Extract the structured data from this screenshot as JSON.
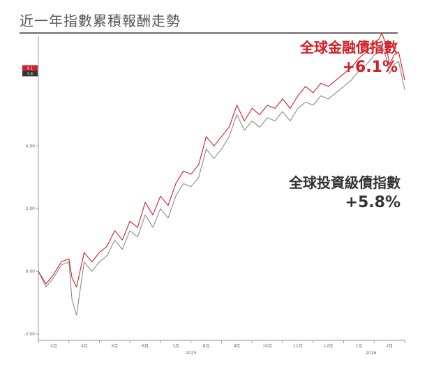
{
  "chart_data": {
    "type": "line",
    "title": "近一年指數累積報酬走勢",
    "xlabel": "",
    "ylabel": "",
    "ylim": [
      -2.2,
      7.5
    ],
    "yticks": [
      -2,
      0,
      2,
      4
    ],
    "ytick_labels": [
      "-2.00",
      "0.00",
      "2.00",
      "4.00"
    ],
    "xtick_labels": [
      "3月",
      "4月",
      "5月",
      "6月",
      "7月",
      "8月",
      "9月",
      "10月",
      "11月",
      "12月",
      "1月",
      "2月"
    ],
    "year_labels": [
      {
        "text": "2025",
        "at_month": 5
      },
      {
        "text": "2026",
        "at_month": 10.9
      }
    ],
    "x_range": [
      0,
      12
    ],
    "grid": false,
    "value_tags": [
      "6.1",
      "5.8"
    ],
    "series": [
      {
        "name": "全球金融債指數",
        "color": "#d21f26",
        "x": [
          0,
          0.25,
          0.5,
          0.75,
          1.0,
          1.1,
          1.25,
          1.5,
          1.75,
          2.0,
          2.25,
          2.5,
          2.75,
          3.0,
          3.25,
          3.5,
          3.75,
          4.0,
          4.25,
          4.5,
          4.75,
          5.0,
          5.25,
          5.5,
          5.75,
          6.0,
          6.25,
          6.5,
          6.75,
          7.0,
          7.25,
          7.5,
          7.75,
          8.0,
          8.25,
          8.5,
          8.75,
          9.0,
          9.25,
          9.5,
          9.75,
          10.0,
          10.25,
          10.5,
          10.75,
          11.0,
          11.15,
          11.25,
          11.4,
          11.5,
          11.65,
          11.8,
          12.0
        ],
        "values": [
          0.0,
          -0.4,
          -0.1,
          0.3,
          0.4,
          -0.2,
          -0.5,
          0.6,
          0.3,
          0.6,
          0.8,
          1.3,
          1.0,
          1.6,
          1.4,
          2.2,
          1.8,
          2.4,
          2.1,
          2.8,
          3.2,
          3.1,
          3.4,
          4.3,
          4.0,
          4.3,
          4.6,
          5.3,
          4.8,
          5.2,
          5.0,
          5.3,
          5.2,
          5.5,
          5.2,
          5.6,
          5.9,
          5.7,
          6.0,
          5.9,
          6.1,
          6.3,
          6.5,
          6.8,
          7.0,
          7.3,
          7.4,
          7.6,
          7.2,
          6.6,
          6.9,
          7.0,
          6.1
        ]
      },
      {
        "name": "全球投資級債指數",
        "color": "#8c8c8c",
        "x": [
          0,
          0.25,
          0.5,
          0.75,
          1.0,
          1.1,
          1.25,
          1.5,
          1.75,
          2.0,
          2.25,
          2.5,
          2.75,
          3.0,
          3.25,
          3.5,
          3.75,
          4.0,
          4.25,
          4.5,
          4.75,
          5.0,
          5.25,
          5.5,
          5.75,
          6.0,
          6.25,
          6.5,
          6.75,
          7.0,
          7.25,
          7.5,
          7.75,
          8.0,
          8.25,
          8.5,
          8.75,
          9.0,
          9.25,
          9.5,
          9.75,
          10.0,
          10.25,
          10.5,
          10.75,
          11.0,
          11.15,
          11.25,
          11.4,
          11.5,
          11.65,
          11.8,
          12.0
        ],
        "values": [
          0.0,
          -0.5,
          -0.2,
          0.2,
          0.3,
          -0.9,
          -1.4,
          0.3,
          0.0,
          0.3,
          0.5,
          1.0,
          0.7,
          1.3,
          1.1,
          1.8,
          1.4,
          2.0,
          1.7,
          2.4,
          2.8,
          2.7,
          3.0,
          3.9,
          3.6,
          3.9,
          4.3,
          5.0,
          4.5,
          4.8,
          4.6,
          4.9,
          4.8,
          5.1,
          4.8,
          5.2,
          5.4,
          5.3,
          5.6,
          5.5,
          5.7,
          5.9,
          6.1,
          6.4,
          6.6,
          6.9,
          7.0,
          7.2,
          6.8,
          6.3,
          6.6,
          6.7,
          5.8
        ]
      }
    ]
  },
  "labels": {
    "series1_name": "全球金融債指數",
    "series1_value": "+6.1%",
    "series2_name": "全球投資級債指數",
    "series2_value": "+5.8%"
  }
}
